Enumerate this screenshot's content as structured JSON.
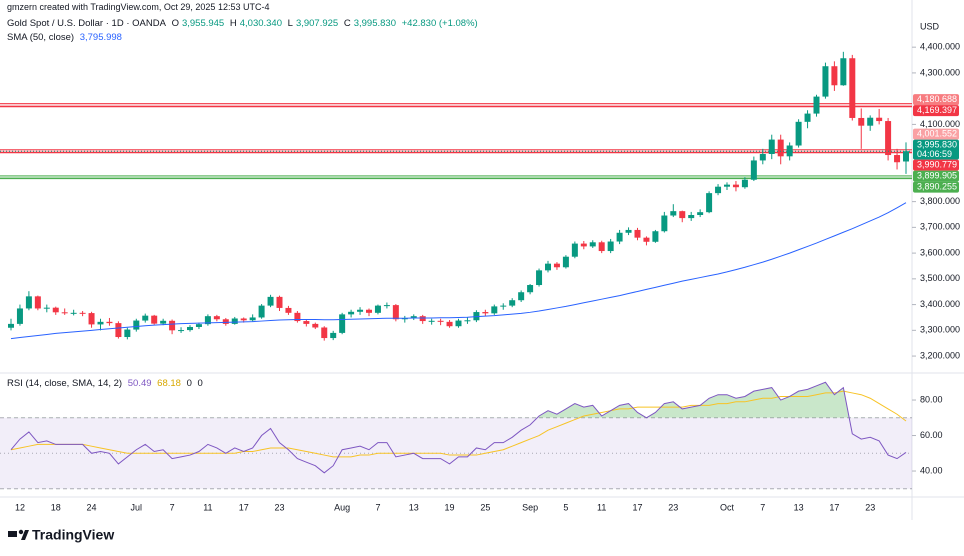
{
  "header": {
    "credit": "gmzern created with TradingView.com, Oct 29, 2025 12:53 UTC-4",
    "symbol": "Gold Spot / U.S. Dollar · 1D · OANDA",
    "ohlc": [
      {
        "key": "O",
        "value": "3,955.945"
      },
      {
        "key": "H",
        "value": "4,030.340"
      },
      {
        "key": "L",
        "value": "3,907.925"
      },
      {
        "key": "C",
        "value": "3,995.830"
      }
    ],
    "change": "+42.830 (+1.08%)",
    "sma_legend": "SMA (50, close)",
    "sma_value": "3,795.998",
    "rsi_legend": "RSI (14, close, SMA, 14, 2)",
    "rsi_extra": [
      "0",
      "0"
    ],
    "currency": "USD"
  },
  "footer": {
    "brand": "TradingView"
  },
  "chart_data": [
    {
      "type": "candlestick",
      "categories": [
        null,
        "12",
        null,
        null,
        null,
        "18",
        null,
        null,
        null,
        "24",
        null,
        null,
        null,
        null,
        "Jul",
        null,
        null,
        null,
        "7",
        null,
        null,
        null,
        "11",
        null,
        null,
        null,
        "17",
        null,
        null,
        null,
        "23",
        null,
        null,
        null,
        null,
        null,
        null,
        "Aug",
        null,
        null,
        null,
        "7",
        null,
        null,
        null,
        "13",
        null,
        null,
        null,
        "19",
        null,
        null,
        null,
        "25",
        null,
        null,
        null,
        null,
        "Sep",
        null,
        null,
        null,
        "5",
        null,
        null,
        null,
        "11",
        null,
        null,
        null,
        "17",
        null,
        null,
        null,
        "23",
        null,
        null,
        null,
        null,
        null,
        "Oct",
        null,
        null,
        null,
        "7",
        null,
        null,
        null,
        "13",
        null,
        null,
        null,
        "17",
        null,
        null,
        null,
        "23",
        null,
        null,
        null,
        null
      ],
      "open": [
        3310,
        3325,
        3385,
        3432,
        3385,
        3388,
        3370,
        3368,
        3368,
        3367,
        3323,
        3333,
        3328,
        3274,
        3303,
        3338,
        3357,
        3326,
        3337,
        3300,
        3301,
        3313,
        3324,
        3355,
        3343,
        3325,
        3346,
        3339,
        3350,
        3396,
        3430,
        3387,
        3368,
        3336,
        3325,
        3311,
        3270,
        3290,
        3362,
        3372,
        3380,
        3368,
        3396,
        3398,
        3343,
        3348,
        3355,
        3336,
        3337,
        3333,
        3316,
        3338,
        3339,
        3371,
        3366,
        3393,
        3396,
        3417,
        3448,
        3476,
        3533,
        3559,
        3545,
        3586,
        3637,
        3626,
        3642,
        3608,
        3645,
        3679,
        3690,
        3660,
        3644,
        3685,
        3746,
        3763,
        3736,
        3748,
        3759,
        3833,
        3858,
        3866,
        3856,
        3885,
        3960,
        3985,
        4041,
        3976,
        4018,
        4110,
        4142,
        4208,
        4326,
        4252,
        4357,
        4125,
        4095,
        4126,
        4113,
        3981,
        3955.945
      ],
      "high": [
        3345,
        3400,
        3452,
        3435,
        3400,
        3392,
        3385,
        3380,
        3375,
        3372,
        3345,
        3348,
        3335,
        3310,
        3345,
        3365,
        3360,
        3345,
        3342,
        3312,
        3320,
        3330,
        3362,
        3360,
        3348,
        3352,
        3350,
        3362,
        3402,
        3438,
        3435,
        3395,
        3375,
        3340,
        3330,
        3316,
        3298,
        3368,
        3380,
        3390,
        3385,
        3400,
        3408,
        3402,
        3356,
        3362,
        3360,
        3345,
        3345,
        3340,
        3345,
        3350,
        3378,
        3380,
        3400,
        3405,
        3425,
        3455,
        3480,
        3540,
        3570,
        3565,
        3592,
        3645,
        3647,
        3650,
        3648,
        3655,
        3690,
        3700,
        3698,
        3665,
        3690,
        3760,
        3790,
        3765,
        3760,
        3770,
        3840,
        3868,
        3875,
        3880,
        3895,
        3975,
        4005,
        4060,
        4060,
        4030,
        4120,
        4155,
        4215,
        4340,
        4345,
        4382,
        4370,
        4162,
        4135,
        4160,
        4125,
        4005,
        4030.34
      ],
      "low": [
        3300,
        3318,
        3378,
        3378,
        3370,
        3360,
        3360,
        3358,
        3355,
        3310,
        3300,
        3318,
        3268,
        3265,
        3295,
        3330,
        3322,
        3320,
        3285,
        3290,
        3295,
        3305,
        3318,
        3335,
        3318,
        3322,
        3330,
        3335,
        3345,
        3390,
        3375,
        3360,
        3330,
        3315,
        3305,
        3260,
        3262,
        3285,
        3350,
        3360,
        3355,
        3362,
        3385,
        3335,
        3330,
        3340,
        3325,
        3322,
        3320,
        3310,
        3310,
        3325,
        3332,
        3355,
        3360,
        3380,
        3390,
        3410,
        3440,
        3470,
        3525,
        3535,
        3540,
        3580,
        3615,
        3620,
        3600,
        3600,
        3635,
        3670,
        3650,
        3630,
        3640,
        3680,
        3740,
        3720,
        3725,
        3740,
        3755,
        3825,
        3845,
        3840,
        3850,
        3880,
        3945,
        3965,
        3945,
        3960,
        4010,
        4085,
        4130,
        4200,
        4230,
        4250,
        4115,
        4005,
        4075,
        4100,
        3960,
        3925,
        3907.925
      ],
      "close": [
        3325,
        3385,
        3432,
        3385,
        3388,
        3370,
        3368,
        3368,
        3367,
        3323,
        3333,
        3328,
        3274,
        3303,
        3338,
        3357,
        3326,
        3337,
        3300,
        3301,
        3313,
        3324,
        3355,
        3343,
        3325,
        3346,
        3339,
        3350,
        3396,
        3430,
        3387,
        3368,
        3336,
        3325,
        3311,
        3270,
        3290,
        3362,
        3372,
        3380,
        3368,
        3396,
        3398,
        3343,
        3348,
        3355,
        3336,
        3337,
        3333,
        3316,
        3338,
        3339,
        3371,
        3366,
        3393,
        3396,
        3417,
        3448,
        3476,
        3533,
        3559,
        3545,
        3586,
        3637,
        3626,
        3642,
        3608,
        3645,
        3679,
        3690,
        3660,
        3644,
        3685,
        3746,
        3763,
        3736,
        3748,
        3759,
        3833,
        3858,
        3866,
        3856,
        3885,
        3960,
        3985,
        4041,
        3976,
        4018,
        4110,
        4142,
        4208,
        4326,
        4252,
        4357,
        4125,
        4095,
        4126,
        4113,
        3981,
        3953,
        3995.83
      ],
      "up_color": "#089981",
      "down_color": "#f23645",
      "sma": {
        "color": "#2962ff",
        "values": [
          3268,
          3272,
          3276,
          3280,
          3284,
          3288,
          3291,
          3294,
          3297,
          3300,
          3303,
          3306,
          3309,
          3312,
          3315,
          3318,
          3320,
          3322,
          3324,
          3326,
          3327,
          3328,
          3329,
          3330,
          3331,
          3332,
          3333,
          3334,
          3336,
          3338,
          3340,
          3341,
          3342,
          3342,
          3342,
          3341,
          3341,
          3342,
          3343,
          3344,
          3345,
          3346,
          3347,
          3347,
          3347,
          3348,
          3348,
          3348,
          3349,
          3349,
          3350,
          3351,
          3353,
          3355,
          3357,
          3360,
          3363,
          3366,
          3370,
          3375,
          3381,
          3387,
          3393,
          3400,
          3407,
          3414,
          3421,
          3428,
          3435,
          3443,
          3451,
          3459,
          3467,
          3475,
          3483,
          3491,
          3498,
          3505,
          3512,
          3519,
          3527,
          3536,
          3545,
          3555,
          3565,
          3576,
          3588,
          3600,
          3613,
          3626,
          3639,
          3653,
          3667,
          3681,
          3695,
          3710,
          3725,
          3740,
          3757,
          3776,
          3795.998
        ]
      },
      "ylim": [
        3142,
        4525
      ],
      "yticks": [
        {
          "value": 3200,
          "label": "3,200.000"
        },
        {
          "value": 3300,
          "label": "3,300.000"
        },
        {
          "value": 3400,
          "label": "3,400.000"
        },
        {
          "value": 3500,
          "label": "3,500.000"
        },
        {
          "value": 3600,
          "label": "3,600.000"
        },
        {
          "value": 3700,
          "label": "3,700.000"
        },
        {
          "value": 3800,
          "label": "3,800.000"
        },
        {
          "value": 4100,
          "label": "4,100.000"
        },
        {
          "value": 4300,
          "label": "4,300.000"
        },
        {
          "value": 4400,
          "label": "4,400.000"
        }
      ],
      "zones": [
        {
          "from": 4169.397,
          "to": 4180.688,
          "color": "#f23645"
        },
        {
          "from": 3990.779,
          "to": 4001.552,
          "color": "#f23645"
        },
        {
          "from": 3890.255,
          "to": 3899.905,
          "color": "#4caf50"
        }
      ],
      "current_price": {
        "value": 3995.83,
        "color": "#089981"
      },
      "price_tags": [
        {
          "value": 4180.688,
          "label": "4,180.688",
          "color": "#f77c80"
        },
        {
          "value": 4169.397,
          "label": "4,169.397",
          "color": "#f23645"
        },
        {
          "value": 4001.552,
          "label": "4,001.552",
          "color": "#faa1a4"
        },
        {
          "value": 3995.83,
          "label": "3,995.830",
          "color": "#089981",
          "note": "04:06:59"
        },
        {
          "value": 3990.779,
          "label": "3,990.779",
          "color": "#f23645"
        },
        {
          "value": 3899.905,
          "label": "3,899.905",
          "color": "#4caf50"
        },
        {
          "value": 3890.255,
          "label": "3,890.255",
          "color": "#4caf50"
        }
      ]
    },
    {
      "type": "line",
      "series": [
        {
          "color": "#7e57c2",
          "values": [
            52,
            58,
            62,
            56,
            57,
            55,
            55,
            55,
            55,
            50,
            51,
            50,
            44,
            48,
            52,
            55,
            51,
            52,
            47,
            48,
            49,
            51,
            55,
            53,
            50,
            53,
            51,
            53,
            60,
            64,
            56,
            52,
            47,
            45,
            43,
            39,
            43,
            52,
            53,
            54,
            52,
            56,
            56,
            48,
            49,
            50,
            47,
            47,
            47,
            44,
            48,
            48,
            53,
            52,
            56,
            56,
            59,
            63,
            66,
            71,
            74,
            72,
            75,
            78,
            76,
            77,
            71,
            74,
            77,
            78,
            73,
            70,
            73,
            78,
            79,
            75,
            76,
            77,
            81,
            83,
            83,
            81,
            82,
            85,
            86,
            87,
            80,
            82,
            85,
            86,
            88,
            90,
            83,
            87,
            61,
            58,
            59,
            57,
            49,
            47,
            50.49
          ]
        },
        {
          "color": "#f7c325",
          "values": [
            52,
            53,
            54,
            55,
            55,
            55,
            55,
            55,
            55,
            54,
            53,
            52,
            51,
            50,
            50,
            50,
            50,
            50,
            50,
            50,
            50,
            50,
            50,
            50,
            50,
            50,
            51,
            51,
            52,
            53,
            53,
            53,
            52,
            51,
            50,
            49,
            48,
            48,
            48,
            49,
            49,
            50,
            50,
            50,
            50,
            50,
            50,
            50,
            50,
            49,
            49,
            49,
            49,
            50,
            51,
            52,
            54,
            56,
            58,
            60,
            63,
            65,
            67,
            69,
            71,
            72,
            73,
            74,
            75,
            75,
            76,
            76,
            76,
            76,
            76,
            76,
            77,
            77,
            77,
            78,
            78,
            79,
            79,
            80,
            81,
            81,
            82,
            82,
            82,
            82,
            83,
            84,
            84,
            85,
            84,
            83,
            81,
            78,
            75,
            72,
            68.18
          ]
        }
      ],
      "ylim": [
        26.5,
        94.1
      ],
      "yticks": [
        {
          "value": 40,
          "label": "40.00"
        },
        {
          "value": 60,
          "label": "60.00"
        },
        {
          "value": 80,
          "label": "80.00"
        }
      ],
      "bands": [
        {
          "value": 70,
          "style": "dashed"
        },
        {
          "value": 50,
          "style": "dotted"
        },
        {
          "value": 30,
          "style": "dashed"
        }
      ],
      "band_fill": "#7e57c2",
      "overbought_fill": "#4caf50"
    }
  ]
}
